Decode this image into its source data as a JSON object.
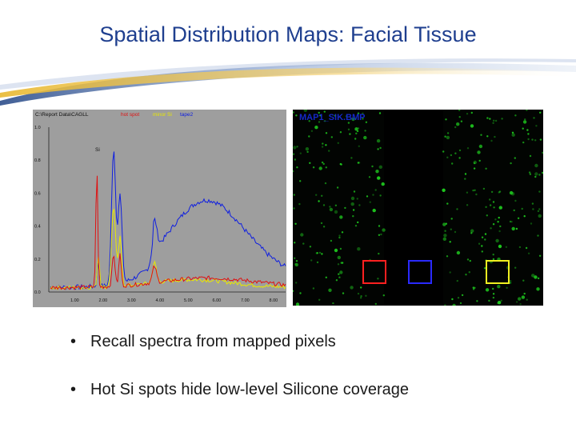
{
  "slide": {
    "title": "Spatial Distribution Maps:  Facial Tissue",
    "bullets": [
      "Recall spectra from mapped pixels",
      "Hot Si spots hide low-level Silicone coverage"
    ]
  },
  "spectrum_panel": {
    "path_label": "C:\\Report Data\\CAGLL",
    "legend": [
      {
        "label": "hot spot",
        "color": "#e01010"
      },
      {
        "label": "minor Si",
        "color": "#e8e800"
      },
      {
        "label": "tape2",
        "color": "#1020e0"
      }
    ],
    "peak_label": "Si",
    "y_ticks": [
      "1.0",
      "0.8",
      "0.6",
      "0.4",
      "0.2",
      "0.0"
    ],
    "x_ticks": [
      "1.00",
      "2.00",
      "3.00",
      "4.00",
      "5.00",
      "6.00",
      "7.00",
      "8.00"
    ],
    "background_color": "#9e9e9e"
  },
  "map_panel": {
    "label": "MAP1_SIK.BMP",
    "label_color": "#1428c8",
    "dot_color": "#1ec81e",
    "boxes": [
      {
        "color": "#ff2020"
      },
      {
        "color": "#2a2aff"
      },
      {
        "color": "#f0f020"
      }
    ]
  },
  "colors": {
    "title": "#1f3f8f",
    "swoosh_dark": "#2c4d8a",
    "swoosh_gold": "#e8b830"
  }
}
